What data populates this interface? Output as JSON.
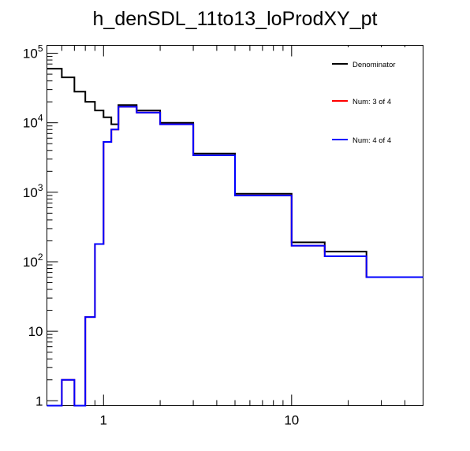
{
  "chart_data": {
    "type": "step",
    "title": "h_denSDL_11to13_loProdXY_pt",
    "xlabel": "",
    "ylabel": "",
    "x_scale": "log",
    "y_scale": "log",
    "xlim": [
      0.5,
      50
    ],
    "ylim": [
      0.85,
      130000
    ],
    "x_tick_labels": [
      "1",
      "10"
    ],
    "y_tick_labels": [
      {
        "base": "1",
        "exp": ""
      },
      {
        "base": "10",
        "exp": ""
      },
      {
        "base": "10",
        "exp": "2"
      },
      {
        "base": "10",
        "exp": "3"
      },
      {
        "base": "10",
        "exp": "4"
      },
      {
        "base": "10",
        "exp": "5"
      }
    ],
    "bin_edges": [
      0.5,
      0.6,
      0.7,
      0.8,
      0.9,
      1.0,
      1.1,
      1.2,
      1.5,
      2.0,
      3.0,
      5.0,
      10.0,
      15.0,
      25.0,
      50.0
    ],
    "series": [
      {
        "name": "Denominator",
        "color": "#000000",
        "values": [
          60000,
          45000,
          28000,
          20000,
          15000,
          12000,
          9500,
          18000,
          15000,
          10000,
          3600,
          950,
          190,
          140,
          60
        ]
      },
      {
        "name": "Num: 3 of 4",
        "color": "#ff0000",
        "values": [
          0.85,
          2,
          0.85,
          16,
          180,
          5300,
          8000,
          17000,
          14000,
          9500,
          3400,
          900,
          170,
          120,
          60
        ]
      },
      {
        "name": "Num: 4 of 4",
        "color": "#0000ff",
        "values": [
          0.85,
          2,
          0.85,
          16,
          180,
          5300,
          8000,
          17000,
          14000,
          9500,
          3400,
          900,
          170,
          120,
          60
        ]
      }
    ],
    "legend_position": "top-right",
    "grid": false
  }
}
